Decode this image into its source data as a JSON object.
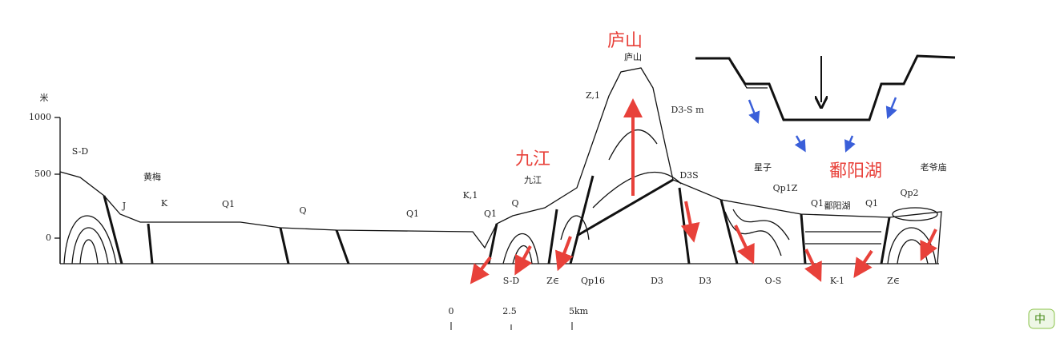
{
  "highlight_labels": [
    "庐山",
    "九江",
    "鄱阳湖"
  ],
  "elevation_axis": {
    "unit": "米",
    "ticks": [
      "1000",
      "500",
      "0"
    ]
  },
  "section_labels": [
    "S-D",
    "黄梅",
    "J",
    "K",
    "Q1",
    "Q",
    "Q1",
    "K,1",
    "Q1",
    "Q",
    "九江",
    "庐山",
    "Z,1",
    "D3-S m",
    "D3S",
    "星子",
    "Qp1Z",
    "鄱阳湖",
    "Q1",
    "Q1",
    "老爷庙",
    "Qp2"
  ],
  "bottom_labels": [
    "S-D",
    "Z∈",
    "Qp16",
    "D3",
    "D3",
    "O-S",
    "K-1",
    "Z∈"
  ],
  "scale_bar": [
    "0",
    "2.5",
    "5km"
  ],
  "badge": "中"
}
